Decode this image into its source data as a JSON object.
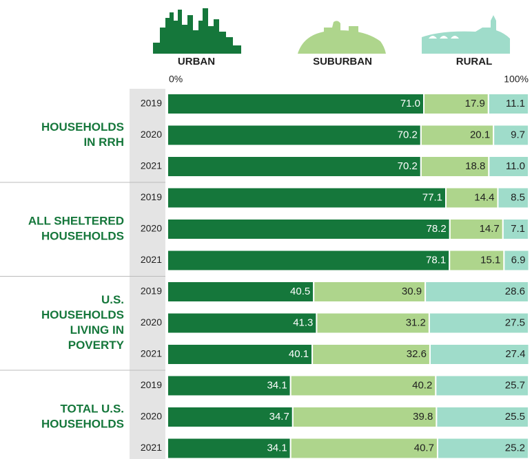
{
  "chart_data": {
    "type": "bar",
    "orientation": "horizontal",
    "stacked": true,
    "xlim": [
      0,
      100
    ],
    "xticks": [
      {
        "value": 0,
        "label": "0%"
      },
      {
        "value": 100,
        "label": "100%"
      }
    ],
    "series": [
      {
        "name": "URBAN",
        "color": "#15773b",
        "label_color": "#ffffff"
      },
      {
        "name": "SUBURBAN",
        "color": "#aed58c",
        "label_color": "#1f1f1f"
      },
      {
        "name": "RURAL",
        "color": "#9fdcca",
        "label_color": "#1f1f1f"
      }
    ],
    "groups": [
      {
        "label_lines": [
          "HOUSEHOLDS",
          "IN RRH"
        ],
        "rows": [
          {
            "category": "2019",
            "values": [
              71.0,
              17.9,
              11.1
            ],
            "value_labels": [
              "71.0",
              "17.9",
              "11.1"
            ]
          },
          {
            "category": "2020",
            "values": [
              70.2,
              20.1,
              9.7
            ],
            "value_labels": [
              "70.2",
              "20.1",
              "9.7"
            ]
          },
          {
            "category": "2021",
            "values": [
              70.2,
              18.8,
              11.0
            ],
            "value_labels": [
              "70.2",
              "18.8",
              "11.0"
            ]
          }
        ]
      },
      {
        "label_lines": [
          "ALL SHELTERED",
          "HOUSEHOLDS"
        ],
        "rows": [
          {
            "category": "2019",
            "values": [
              77.1,
              14.4,
              8.5
            ],
            "value_labels": [
              "77.1",
              "14.4",
              "8.5"
            ]
          },
          {
            "category": "2020",
            "values": [
              78.2,
              14.7,
              7.1
            ],
            "value_labels": [
              "78.2",
              "14.7",
              "7.1"
            ]
          },
          {
            "category": "2021",
            "values": [
              78.1,
              15.1,
              6.9
            ],
            "value_labels": [
              "78.1",
              "15.1",
              "6.9"
            ]
          }
        ]
      },
      {
        "label_lines": [
          "U.S.",
          "HOUSEHOLDS",
          "LIVING IN",
          "POVERTY"
        ],
        "rows": [
          {
            "category": "2019",
            "values": [
              40.5,
              30.9,
              28.6
            ],
            "value_labels": [
              "40.5",
              "30.9",
              "28.6"
            ]
          },
          {
            "category": "2020",
            "values": [
              41.3,
              31.2,
              27.5
            ],
            "value_labels": [
              "41.3",
              "31.2",
              "27.5"
            ]
          },
          {
            "category": "2021",
            "values": [
              40.1,
              32.6,
              27.4
            ],
            "value_labels": [
              "40.1",
              "32.6",
              "27.4"
            ]
          }
        ]
      },
      {
        "label_lines": [
          "TOTAL U.S.",
          "HOUSEHOLDS"
        ],
        "rows": [
          {
            "category": "2019",
            "values": [
              34.1,
              40.2,
              25.7
            ],
            "value_labels": [
              "34.1",
              "40.2",
              "25.7"
            ]
          },
          {
            "category": "2020",
            "values": [
              34.7,
              39.8,
              25.5
            ],
            "value_labels": [
              "34.7",
              "39.8",
              "25.5"
            ]
          },
          {
            "category": "2021",
            "values": [
              34.1,
              40.7,
              25.2
            ],
            "value_labels": [
              "34.1",
              "40.7",
              "25.2"
            ]
          }
        ]
      }
    ]
  }
}
